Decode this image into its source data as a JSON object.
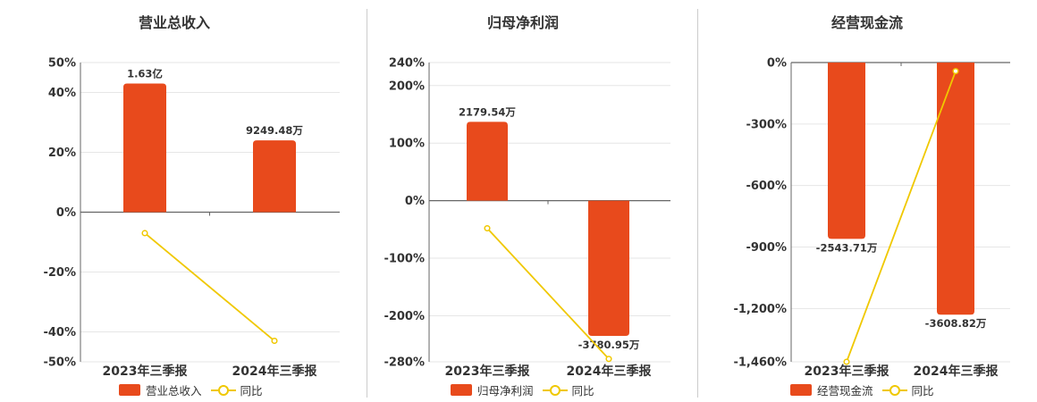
{
  "colors": {
    "bar": "#e84a1c",
    "line": "#f0c800",
    "grid": "#e6e6e6",
    "axis": "#666666"
  },
  "chart_data": [
    {
      "type": "bar",
      "title": "营业总收入",
      "categories": [
        "2023年三季报",
        "2024年三季报"
      ],
      "series": [
        {
          "name": "营业总收入",
          "type": "bar",
          "values": [
            43,
            24
          ],
          "labels": [
            "1.63亿",
            "9249.48万"
          ]
        },
        {
          "name": "同比",
          "type": "line",
          "values": [
            -7,
            -43
          ]
        }
      ],
      "ylim": [
        -50,
        50
      ],
      "yticks": [
        50,
        40,
        20,
        0,
        -20,
        -40,
        -50
      ],
      "ytick_labels": [
        "50%",
        "40%",
        "20%",
        "0%",
        "-20%",
        "-40%",
        "-50%"
      ],
      "legend": "bottom"
    },
    {
      "type": "bar",
      "title": "归母净利润",
      "categories": [
        "2023年三季报",
        "2024年三季报"
      ],
      "series": [
        {
          "name": "归母净利润",
          "type": "bar",
          "values": [
            137,
            -235
          ],
          "labels": [
            "2179.54万",
            "-3780.95万"
          ]
        },
        {
          "name": "同比",
          "type": "line",
          "values": [
            -48,
            -275
          ]
        }
      ],
      "ylim": [
        -280,
        240
      ],
      "yticks": [
        240,
        200,
        100,
        0,
        -100,
        -200,
        -280
      ],
      "ytick_labels": [
        "240%",
        "200%",
        "100%",
        "0%",
        "-100%",
        "-200%",
        "-280%"
      ],
      "legend": "bottom"
    },
    {
      "type": "bar",
      "title": "经营现金流",
      "categories": [
        "2023年三季报",
        "2024年三季报"
      ],
      "series": [
        {
          "name": "经营现金流",
          "type": "bar",
          "values": [
            -860,
            -1230
          ],
          "labels": [
            "-2543.71万",
            "-3608.82万"
          ]
        },
        {
          "name": "同比",
          "type": "line",
          "values": [
            -1460,
            -42
          ]
        }
      ],
      "ylim": [
        -1460,
        0
      ],
      "yticks": [
        0,
        -300,
        -600,
        -900,
        -1200,
        -1460
      ],
      "ytick_labels": [
        "0%",
        "-300%",
        "-600%",
        "-900%",
        "-1,200%",
        "-1,460%"
      ],
      "legend": "bottom"
    }
  ]
}
